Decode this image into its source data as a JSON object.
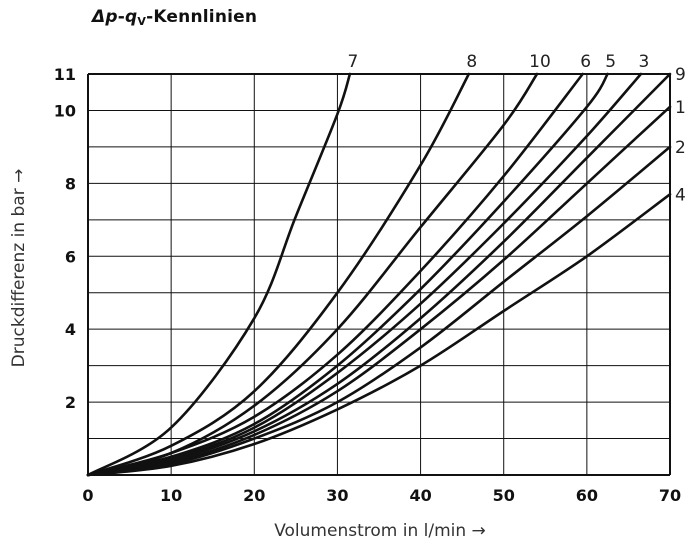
{
  "chart_data": {
    "type": "line",
    "title_parts": {
      "a": "Δp",
      "dash": "-",
      "b": "q",
      "sub": "V",
      "rest": "-Kennlinien"
    },
    "xlabel": "Volumenstrom in l/min →",
    "ylabel": "Druckdifferenz in bar →",
    "xlim": [
      0,
      70
    ],
    "ylim": [
      0,
      11
    ],
    "x_ticks": [
      0,
      10,
      20,
      30,
      40,
      50,
      60,
      70
    ],
    "y_tick_labels": [
      2,
      4,
      6,
      8,
      10,
      11
    ],
    "y_gridlines": [
      1,
      2,
      3,
      4,
      5,
      6,
      7,
      8,
      9,
      10,
      11
    ],
    "grid": true,
    "series": [
      {
        "name": "7",
        "points": [
          [
            0,
            0
          ],
          [
            10,
            1.3
          ],
          [
            20,
            4.3
          ],
          [
            25,
            7.1
          ],
          [
            30,
            9.9
          ],
          [
            31.5,
            11
          ]
        ]
      },
      {
        "name": "8",
        "points": [
          [
            0,
            0
          ],
          [
            10,
            0.8
          ],
          [
            20,
            2.3
          ],
          [
            30,
            5.0
          ],
          [
            40,
            8.5
          ],
          [
            45.8,
            11
          ]
        ]
      },
      {
        "name": "10",
        "points": [
          [
            0,
            0
          ],
          [
            10,
            0.6
          ],
          [
            20,
            1.9
          ],
          [
            30,
            4.0
          ],
          [
            40,
            6.8
          ],
          [
            50,
            9.6
          ],
          [
            54,
            11
          ]
        ]
      },
      {
        "name": "6",
        "points": [
          [
            0,
            0
          ],
          [
            10,
            0.6
          ],
          [
            20,
            1.6
          ],
          [
            30,
            3.3
          ],
          [
            40,
            5.6
          ],
          [
            50,
            8.2
          ],
          [
            59.5,
            11
          ]
        ]
      },
      {
        "name": "5",
        "points": [
          [
            0,
            0
          ],
          [
            10,
            0.5
          ],
          [
            20,
            1.4
          ],
          [
            30,
            3.0
          ],
          [
            40,
            5.1
          ],
          [
            50,
            7.5
          ],
          [
            60,
            10.1
          ],
          [
            62.5,
            11
          ]
        ]
      },
      {
        "name": "3",
        "points": [
          [
            0,
            0
          ],
          [
            10,
            0.45
          ],
          [
            20,
            1.3
          ],
          [
            30,
            2.8
          ],
          [
            40,
            4.7
          ],
          [
            50,
            6.9
          ],
          [
            60,
            9.3
          ],
          [
            66.5,
            11
          ]
        ]
      },
      {
        "name": "9",
        "points": [
          [
            0,
            0
          ],
          [
            10,
            0.4
          ],
          [
            20,
            1.2
          ],
          [
            30,
            2.5
          ],
          [
            40,
            4.3
          ],
          [
            50,
            6.4
          ],
          [
            60,
            8.7
          ],
          [
            70,
            11
          ]
        ]
      },
      {
        "name": "1",
        "points": [
          [
            0,
            0
          ],
          [
            10,
            0.35
          ],
          [
            20,
            1.1
          ],
          [
            30,
            2.3
          ],
          [
            40,
            4.0
          ],
          [
            50,
            5.9
          ],
          [
            60,
            8.0
          ],
          [
            70,
            10.1
          ]
        ]
      },
      {
        "name": "2",
        "points": [
          [
            0,
            0
          ],
          [
            10,
            0.3
          ],
          [
            20,
            1.0
          ],
          [
            30,
            2.0
          ],
          [
            40,
            3.5
          ],
          [
            50,
            5.3
          ],
          [
            60,
            7.1
          ],
          [
            70,
            9.0
          ]
        ]
      },
      {
        "name": "4",
        "points": [
          [
            0,
            0
          ],
          [
            10,
            0.25
          ],
          [
            20,
            0.85
          ],
          [
            30,
            1.8
          ],
          [
            40,
            3.0
          ],
          [
            50,
            4.5
          ],
          [
            60,
            6.0
          ],
          [
            70,
            7.7
          ]
        ]
      }
    ]
  }
}
